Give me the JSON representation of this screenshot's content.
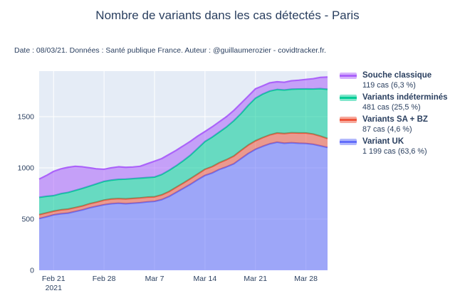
{
  "title": "Nombre de variants dans les cas détectés - Paris",
  "subtitle": "Date : 08/03/21. Données : Santé publique France. Auteur : @guillaumerozier - covidtracker.fr.",
  "colors": {
    "text": "#2a3f5f",
    "page_bg": "#ffffff",
    "plot_bg": "#e5ecf6",
    "grid": "#ffffff",
    "variant_uk": "#636efa",
    "variants_sa_bz": "#ef553b",
    "variants_indetermines": "#00cc96",
    "souche_classique": "#ab63fa"
  },
  "legend": {
    "items": [
      {
        "name": "Souche classique",
        "value": "119 cas (6,3 %)",
        "line": "#ab63fa",
        "fill": "#d5b1fc"
      },
      {
        "name": "Variants indéterminés",
        "value": "481 cas (25,5 %)",
        "line": "#00cc96",
        "fill": "#80e6cb"
      },
      {
        "name": "Variants SA + BZ",
        "value": "87 cas (4,6 %)",
        "line": "#ef553b",
        "fill": "#f7aa9d"
      },
      {
        "name": "Variant UK",
        "value": "1 199 cas (63,6 %)",
        "line": "#636efa",
        "fill": "#b1b7fc"
      }
    ]
  },
  "chart_data": {
    "type": "area",
    "stacked": true,
    "title": "Nombre de variants dans les cas détectés - Paris",
    "xlabel": "",
    "ylabel": "",
    "grid": true,
    "legend_position": "right",
    "plot_bg": "#e5ecf6",
    "grid_color": "#ffffff",
    "fill_opacity": 0.55,
    "line_width": 2.2,
    "ylim": [
      0,
      1944
    ],
    "yticks": [
      0,
      500,
      1000,
      1500
    ],
    "xticks": [
      {
        "day": 2,
        "label": "Feb 21",
        "sub": "2021"
      },
      {
        "day": 9,
        "label": "Feb 28"
      },
      {
        "day": 16,
        "label": "Mar 7"
      },
      {
        "day": 23,
        "label": "Mar 14"
      },
      {
        "day": 30,
        "label": "Mar 21"
      },
      {
        "day": 37,
        "label": "Mar 28"
      }
    ],
    "x": [
      "Feb 19",
      "Feb 20",
      "Feb 21",
      "Feb 22",
      "Feb 23",
      "Feb 24",
      "Feb 25",
      "Feb 26",
      "Feb 27",
      "Feb 28",
      "Mar 1",
      "Mar 2",
      "Mar 3",
      "Mar 4",
      "Mar 5",
      "Mar 6",
      "Mar 7",
      "Mar 8",
      "Mar 9",
      "Mar 10",
      "Mar 11",
      "Mar 12",
      "Mar 13",
      "Mar 14",
      "Mar 15",
      "Mar 16",
      "Mar 17",
      "Mar 18",
      "Mar 19",
      "Mar 20",
      "Mar 21",
      "Mar 22",
      "Mar 23",
      "Mar 24",
      "Mar 25",
      "Mar 26",
      "Mar 27",
      "Mar 28",
      "Mar 29",
      "Mar 30",
      "Mar 31"
    ],
    "series": [
      {
        "name": "Variant UK",
        "key": "variant-uk",
        "color": "#636efa",
        "final_label": "1 199 cas (63,6 %)",
        "values": [
          505,
          522,
          541,
          552,
          558,
          574,
          590,
          610,
          625,
          640,
          650,
          655,
          650,
          655,
          660,
          668,
          673,
          690,
          720,
          760,
          800,
          840,
          885,
          926,
          950,
          985,
          1010,
          1040,
          1090,
          1140,
          1181,
          1210,
          1235,
          1250,
          1240,
          1245,
          1240,
          1238,
          1230,
          1215,
          1199
        ]
      },
      {
        "name": "Variants SA + BZ",
        "key": "variants-sa-bz",
        "color": "#ef553b",
        "final_label": "87 cas (4,6 %)",
        "values": [
          38,
          38,
          36,
          38,
          39,
          38,
          38,
          40,
          41,
          45,
          46,
          45,
          47,
          47,
          47,
          46,
          44,
          46,
          48,
          50,
          52,
          55,
          55,
          60,
          62,
          65,
          70,
          75,
          80,
          82,
          83,
          85,
          87,
          90,
          95,
          97,
          100,
          102,
          100,
          95,
          87
        ]
      },
      {
        "name": "Variants indéterminés",
        "key": "variants-indetermines",
        "color": "#00cc96",
        "final_label": "481 cas (25,5 %)",
        "values": [
          169,
          162,
          152,
          158,
          163,
          168,
          172,
          172,
          179,
          183,
          184,
          188,
          193,
          193,
          193,
          191,
          193,
          199,
          207,
          210,
          218,
          230,
          250,
          271,
          288,
          300,
          320,
          345,
          360,
          388,
          416,
          425,
          428,
          425,
          425,
          426,
          430,
          431,
          440,
          463,
          481
        ]
      },
      {
        "name": "Souche classique",
        "key": "souche-classique",
        "color": "#ab63fa",
        "final_label": "119 cas (6,3 %)",
        "values": [
          178,
          203,
          236,
          242,
          245,
          235,
          210,
          178,
          145,
          118,
          120,
          122,
          115,
          113,
          115,
          135,
          155,
          155,
          155,
          150,
          145,
          135,
          120,
          97,
          100,
          100,
          100,
          100,
          100,
          90,
          91,
          80,
          80,
          75,
          75,
          82,
          85,
          92,
          100,
          110,
          119
        ]
      }
    ]
  }
}
